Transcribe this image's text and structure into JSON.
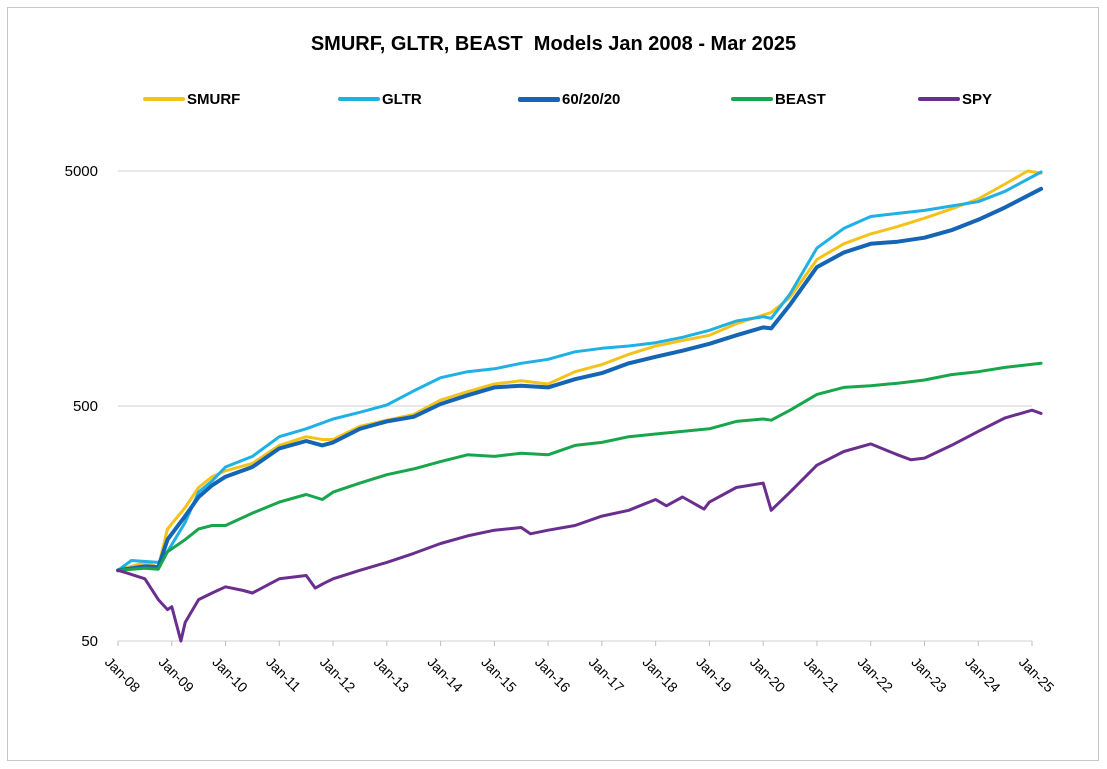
{
  "chart_data": {
    "type": "line",
    "title": "SMURF, GLTR, BEAST  Models Jan 2008 - Mar 2025",
    "xlabel": "",
    "ylabel": "",
    "y_scale": "log",
    "ylim": [
      50,
      5000
    ],
    "y_ticks": [
      "5000",
      "500",
      "50"
    ],
    "x_ticks": [
      "Jan-08",
      "Jan-09",
      "Jan-10",
      "Jan-11",
      "Jan-12",
      "Jan-13",
      "Jan-14",
      "Jan-15",
      "Jan-16",
      "Jan-17",
      "Jan-18",
      "Jan-19",
      "Jan-20",
      "Jan-21",
      "Jan-22",
      "Jan-23",
      "Jan-24",
      "Jan-25"
    ],
    "grid": "horizontal",
    "legend_position": "top",
    "series": [
      {
        "name": "SMURF",
        "color": "#f5c21b",
        "width": 3,
        "points": [
          [
            2008.0,
            100
          ],
          [
            2008.5,
            108
          ],
          [
            2008.75,
            103
          ],
          [
            2008.92,
            150
          ],
          [
            2009.25,
            185
          ],
          [
            2009.5,
            225
          ],
          [
            2009.75,
            250
          ],
          [
            2010.0,
            265
          ],
          [
            2010.5,
            285
          ],
          [
            2011.0,
            340
          ],
          [
            2011.5,
            370
          ],
          [
            2011.8,
            360
          ],
          [
            2012.0,
            360
          ],
          [
            2012.5,
            410
          ],
          [
            2013.0,
            435
          ],
          [
            2013.5,
            460
          ],
          [
            2014.0,
            530
          ],
          [
            2014.5,
            575
          ],
          [
            2015.0,
            620
          ],
          [
            2015.5,
            640
          ],
          [
            2016.0,
            620
          ],
          [
            2016.5,
            700
          ],
          [
            2017.0,
            750
          ],
          [
            2017.5,
            830
          ],
          [
            2018.0,
            900
          ],
          [
            2018.5,
            950
          ],
          [
            2019.0,
            1000
          ],
          [
            2019.5,
            1120
          ],
          [
            2020.0,
            1220
          ],
          [
            2020.15,
            1250
          ],
          [
            2020.5,
            1450
          ],
          [
            2021.0,
            2100
          ],
          [
            2021.5,
            2450
          ],
          [
            2022.0,
            2700
          ],
          [
            2022.5,
            2900
          ],
          [
            2023.0,
            3150
          ],
          [
            2023.5,
            3450
          ],
          [
            2024.0,
            3800
          ],
          [
            2024.5,
            4400
          ],
          [
            2024.92,
            5000
          ],
          [
            2025.17,
            4900
          ]
        ]
      },
      {
        "name": "GLTR",
        "color": "#1fb0e4",
        "width": 3,
        "points": [
          [
            2008.0,
            100
          ],
          [
            2008.25,
            110
          ],
          [
            2008.75,
            108
          ],
          [
            2008.92,
            120
          ],
          [
            2009.25,
            160
          ],
          [
            2009.5,
            215
          ],
          [
            2009.75,
            240
          ],
          [
            2010.0,
            275
          ],
          [
            2010.5,
            305
          ],
          [
            2011.0,
            370
          ],
          [
            2011.5,
            400
          ],
          [
            2012.0,
            440
          ],
          [
            2012.5,
            470
          ],
          [
            2013.0,
            505
          ],
          [
            2013.5,
            580
          ],
          [
            2014.0,
            660
          ],
          [
            2014.5,
            700
          ],
          [
            2015.0,
            720
          ],
          [
            2015.5,
            760
          ],
          [
            2016.0,
            790
          ],
          [
            2016.5,
            850
          ],
          [
            2017.0,
            880
          ],
          [
            2017.5,
            900
          ],
          [
            2018.0,
            930
          ],
          [
            2018.5,
            980
          ],
          [
            2019.0,
            1050
          ],
          [
            2019.5,
            1150
          ],
          [
            2020.0,
            1200
          ],
          [
            2020.15,
            1180
          ],
          [
            2020.5,
            1500
          ],
          [
            2021.0,
            2350
          ],
          [
            2021.5,
            2850
          ],
          [
            2022.0,
            3200
          ],
          [
            2022.5,
            3300
          ],
          [
            2023.0,
            3400
          ],
          [
            2023.5,
            3550
          ],
          [
            2024.0,
            3700
          ],
          [
            2024.5,
            4100
          ],
          [
            2025.17,
            4950
          ]
        ]
      },
      {
        "name": "60/20/20",
        "color": "#1565b5",
        "width": 4,
        "points": [
          [
            2008.0,
            100
          ],
          [
            2008.5,
            104
          ],
          [
            2008.75,
            103
          ],
          [
            2008.92,
            135
          ],
          [
            2009.25,
            170
          ],
          [
            2009.5,
            205
          ],
          [
            2009.75,
            230
          ],
          [
            2010.0,
            250
          ],
          [
            2010.5,
            275
          ],
          [
            2011.0,
            330
          ],
          [
            2011.5,
            355
          ],
          [
            2011.8,
            340
          ],
          [
            2012.0,
            350
          ],
          [
            2012.5,
            400
          ],
          [
            2013.0,
            430
          ],
          [
            2013.5,
            450
          ],
          [
            2014.0,
            510
          ],
          [
            2014.5,
            555
          ],
          [
            2015.0,
            600
          ],
          [
            2015.5,
            610
          ],
          [
            2016.0,
            600
          ],
          [
            2016.5,
            650
          ],
          [
            2017.0,
            690
          ],
          [
            2017.5,
            760
          ],
          [
            2018.0,
            810
          ],
          [
            2018.5,
            860
          ],
          [
            2019.0,
            920
          ],
          [
            2019.5,
            1000
          ],
          [
            2020.0,
            1080
          ],
          [
            2020.15,
            1070
          ],
          [
            2020.5,
            1350
          ],
          [
            2021.0,
            1950
          ],
          [
            2021.5,
            2250
          ],
          [
            2022.0,
            2450
          ],
          [
            2022.5,
            2500
          ],
          [
            2023.0,
            2600
          ],
          [
            2023.5,
            2800
          ],
          [
            2024.0,
            3100
          ],
          [
            2024.5,
            3500
          ],
          [
            2025.17,
            4200
          ]
        ]
      },
      {
        "name": "BEAST",
        "color": "#19a54b",
        "width": 3,
        "points": [
          [
            2008.0,
            100
          ],
          [
            2008.5,
            102
          ],
          [
            2008.75,
            101
          ],
          [
            2008.92,
            120
          ],
          [
            2009.25,
            135
          ],
          [
            2009.5,
            150
          ],
          [
            2009.75,
            155
          ],
          [
            2010.0,
            155
          ],
          [
            2010.5,
            175
          ],
          [
            2011.0,
            195
          ],
          [
            2011.5,
            210
          ],
          [
            2011.8,
            200
          ],
          [
            2012.0,
            215
          ],
          [
            2012.5,
            235
          ],
          [
            2013.0,
            255
          ],
          [
            2013.5,
            270
          ],
          [
            2014.0,
            290
          ],
          [
            2014.5,
            310
          ],
          [
            2015.0,
            305
          ],
          [
            2015.5,
            315
          ],
          [
            2016.0,
            310
          ],
          [
            2016.5,
            340
          ],
          [
            2017.0,
            350
          ],
          [
            2017.5,
            370
          ],
          [
            2018.0,
            380
          ],
          [
            2018.5,
            390
          ],
          [
            2019.0,
            400
          ],
          [
            2019.5,
            430
          ],
          [
            2020.0,
            440
          ],
          [
            2020.15,
            435
          ],
          [
            2020.5,
            480
          ],
          [
            2021.0,
            560
          ],
          [
            2021.5,
            600
          ],
          [
            2022.0,
            610
          ],
          [
            2022.5,
            625
          ],
          [
            2023.0,
            645
          ],
          [
            2023.5,
            680
          ],
          [
            2024.0,
            700
          ],
          [
            2024.5,
            730
          ],
          [
            2025.17,
            760
          ]
        ]
      },
      {
        "name": "SPY",
        "color": "#6a2f8e",
        "width": 3,
        "points": [
          [
            2008.0,
            100
          ],
          [
            2008.25,
            96
          ],
          [
            2008.5,
            92
          ],
          [
            2008.75,
            75
          ],
          [
            2008.92,
            68
          ],
          [
            2009.0,
            70
          ],
          [
            2009.17,
            50
          ],
          [
            2009.25,
            60
          ],
          [
            2009.5,
            75
          ],
          [
            2009.75,
            80
          ],
          [
            2010.0,
            85
          ],
          [
            2010.33,
            82
          ],
          [
            2010.5,
            80
          ],
          [
            2011.0,
            92
          ],
          [
            2011.5,
            95
          ],
          [
            2011.67,
            84
          ],
          [
            2011.83,
            88
          ],
          [
            2012.0,
            92
          ],
          [
            2012.5,
            100
          ],
          [
            2013.0,
            108
          ],
          [
            2013.5,
            118
          ],
          [
            2014.0,
            130
          ],
          [
            2014.5,
            140
          ],
          [
            2015.0,
            148
          ],
          [
            2015.5,
            152
          ],
          [
            2015.67,
            143
          ],
          [
            2016.0,
            148
          ],
          [
            2016.5,
            155
          ],
          [
            2017.0,
            170
          ],
          [
            2017.5,
            180
          ],
          [
            2018.0,
            200
          ],
          [
            2018.2,
            188
          ],
          [
            2018.5,
            205
          ],
          [
            2018.9,
            182
          ],
          [
            2019.0,
            195
          ],
          [
            2019.5,
            225
          ],
          [
            2020.0,
            235
          ],
          [
            2020.15,
            180
          ],
          [
            2020.5,
            215
          ],
          [
            2021.0,
            280
          ],
          [
            2021.5,
            320
          ],
          [
            2022.0,
            345
          ],
          [
            2022.5,
            310
          ],
          [
            2022.75,
            295
          ],
          [
            2023.0,
            300
          ],
          [
            2023.5,
            340
          ],
          [
            2024.0,
            390
          ],
          [
            2024.5,
            445
          ],
          [
            2025.0,
            480
          ],
          [
            2025.17,
            465
          ]
        ]
      }
    ]
  }
}
